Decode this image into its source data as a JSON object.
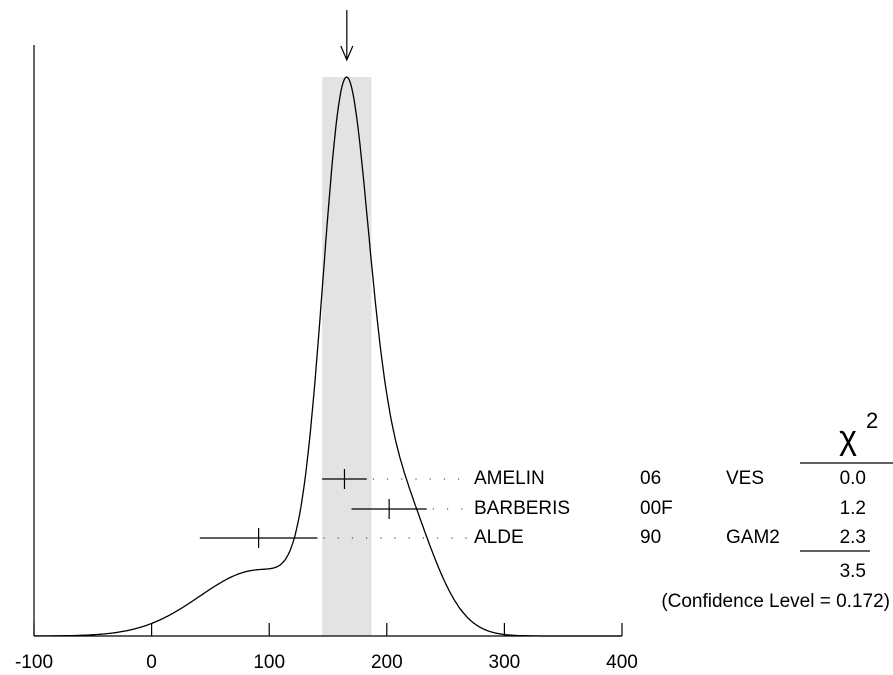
{
  "chart_data": {
    "type": "ideogram",
    "xlim": [
      -100,
      400
    ],
    "xticks": [
      -100,
      0,
      100,
      200,
      300,
      400
    ],
    "names": [
      "AMELIN",
      "BARBERIS",
      "ALDE"
    ],
    "years": [
      "06",
      "00F",
      "90"
    ],
    "techniques": [
      "VES",
      null,
      "GAM2"
    ],
    "values": [
      164,
      202,
      91
    ],
    "errors": [
      19,
      32,
      50
    ],
    "chi2": [
      "0.0",
      "1.2",
      "2.3"
    ],
    "chi2_total": 3.5,
    "chi2_symbol": "χ",
    "chi2_exponent": "2",
    "confidence_label": "(Confidence Level = 0.172)",
    "average": 166,
    "average_error": 21
  }
}
